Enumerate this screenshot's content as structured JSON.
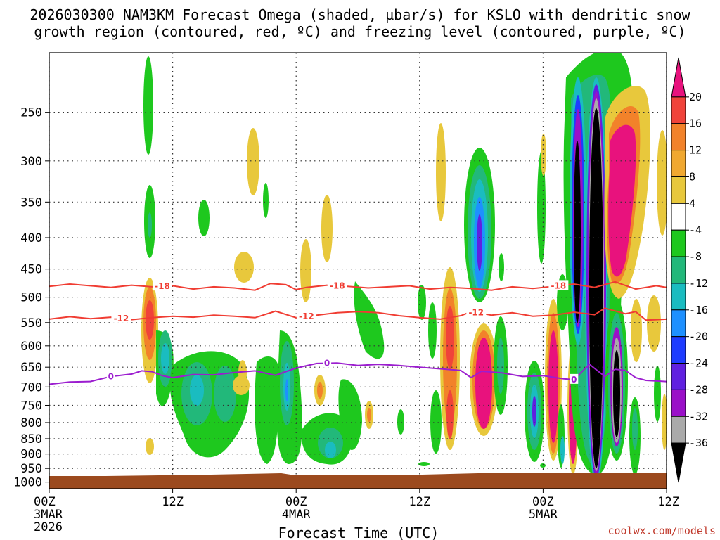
{
  "chart_data": {
    "type": "heatmap",
    "title_line1": "2026030300 NAM3KM Forecast Omega (shaded, µbar/s) for KSLO with dendritic snow",
    "title_line2": "growth region (contoured, red, ºC) and freezing level (contoured, purple, ºC)",
    "xlabel": "Forecast Time (UTC)",
    "x_ticks": [
      {
        "hour": 0,
        "label": "00Z",
        "date": "3MAR",
        "year": "2026"
      },
      {
        "hour": 12,
        "label": "12Z",
        "date": "",
        "year": ""
      },
      {
        "hour": 24,
        "label": "00Z",
        "date": "4MAR",
        "year": ""
      },
      {
        "hour": 36,
        "label": "12Z",
        "date": "",
        "year": ""
      },
      {
        "hour": 48,
        "label": "00Z",
        "date": "5MAR",
        "year": ""
      },
      {
        "hour": 60,
        "label": "12Z",
        "date": "",
        "year": ""
      }
    ],
    "xlim": [
      0,
      60
    ],
    "y_ticks": [
      "250",
      "300",
      "350",
      "400",
      "450",
      "500",
      "550",
      "600",
      "650",
      "700",
      "750",
      "800",
      "850",
      "900",
      "950",
      "1000"
    ],
    "ylim_hpa": [
      200,
      1025
    ],
    "colorbar": {
      "levels": [
        "20",
        "16",
        "12",
        "8",
        "4",
        "-4",
        "-8",
        "-12",
        "-16",
        "-20",
        "-24",
        "-28",
        "-32",
        "-36"
      ],
      "colors": [
        "#e8127d",
        "#f0433a",
        "#f2822a",
        "#f0a830",
        "#e8c83c",
        "#ffffff",
        "#1ec81e",
        "#22b87a",
        "#1abcc0",
        "#1e90ff",
        "#1e3cff",
        "#6020e0",
        "#9a10c8",
        "#aaaaaa",
        "#000000"
      ]
    },
    "dgz_contours": [
      {
        "label": "-18",
        "color": "#f03c32",
        "points": [
          [
            0,
            480
          ],
          [
            2,
            476
          ],
          [
            4,
            479
          ],
          [
            6,
            482
          ],
          [
            8,
            478
          ],
          [
            10,
            481
          ],
          [
            12,
            479
          ],
          [
            14,
            485
          ],
          [
            16,
            481
          ],
          [
            18,
            483
          ],
          [
            20,
            487
          ],
          [
            21.5,
            475
          ],
          [
            23,
            477
          ],
          [
            24,
            486
          ],
          [
            25,
            482
          ],
          [
            27,
            478
          ],
          [
            29,
            480
          ],
          [
            31,
            483
          ],
          [
            33,
            481
          ],
          [
            35,
            479
          ],
          [
            37,
            485
          ],
          [
            39,
            482
          ],
          [
            41,
            484
          ],
          [
            43,
            487
          ],
          [
            45,
            481
          ],
          [
            47,
            484
          ],
          [
            49,
            480
          ],
          [
            51,
            476
          ],
          [
            53,
            482
          ],
          [
            55,
            472
          ],
          [
            57,
            485
          ],
          [
            59,
            479
          ],
          [
            60,
            482
          ]
        ],
        "labels_at": [
          11,
          28,
          49.5
        ]
      },
      {
        "label": "-12",
        "color": "#f03c32",
        "points": [
          [
            0,
            543
          ],
          [
            2,
            538
          ],
          [
            4,
            542
          ],
          [
            6,
            539
          ],
          [
            8,
            544
          ],
          [
            10,
            540
          ],
          [
            12,
            537
          ],
          [
            14,
            539
          ],
          [
            16,
            535
          ],
          [
            18,
            537
          ],
          [
            20,
            540
          ],
          [
            22,
            527
          ],
          [
            24,
            540
          ],
          [
            26,
            535
          ],
          [
            28,
            530
          ],
          [
            30,
            528
          ],
          [
            32,
            530
          ],
          [
            34,
            536
          ],
          [
            36,
            540
          ],
          [
            38,
            543
          ],
          [
            40,
            536
          ],
          [
            41,
            528
          ],
          [
            43,
            535
          ],
          [
            45,
            530
          ],
          [
            47,
            537
          ],
          [
            49,
            535
          ],
          [
            51,
            529
          ],
          [
            53,
            534
          ],
          [
            54,
            521
          ],
          [
            56,
            532
          ],
          [
            57,
            528
          ],
          [
            58,
            545
          ],
          [
            60,
            543
          ]
        ],
        "labels_at": [
          7,
          25,
          41.5
        ]
      },
      {
        "label": "0",
        "color": "#9b1dcf",
        "points": [
          [
            0,
            693
          ],
          [
            2,
            687
          ],
          [
            4,
            686
          ],
          [
            6,
            673
          ],
          [
            8,
            667
          ],
          [
            9,
            659
          ],
          [
            10,
            661
          ],
          [
            11,
            671
          ],
          [
            12,
            676
          ],
          [
            14,
            668
          ],
          [
            16,
            669
          ],
          [
            18,
            663
          ],
          [
            20,
            659
          ],
          [
            22,
            670
          ],
          [
            24,
            652
          ],
          [
            26,
            641
          ],
          [
            28,
            640
          ],
          [
            30,
            646
          ],
          [
            32,
            643
          ],
          [
            34,
            646
          ],
          [
            36,
            650
          ],
          [
            38,
            654
          ],
          [
            40,
            658
          ],
          [
            41,
            676
          ],
          [
            42,
            660
          ],
          [
            44,
            664
          ],
          [
            46,
            673
          ],
          [
            48,
            671
          ],
          [
            50,
            679
          ],
          [
            51,
            681
          ],
          [
            52.5,
            643
          ],
          [
            54,
            673
          ],
          [
            55,
            655
          ],
          [
            56,
            658
          ],
          [
            57,
            676
          ],
          [
            58,
            683
          ],
          [
            60,
            686
          ]
        ],
        "labels_at": [
          6,
          27,
          51
        ]
      }
    ],
    "omega_regions_note": "shaded omega; strongest upward motion (< -36) near 5MAR 06Z through the column"
  },
  "credit": "coolwx.com/models"
}
